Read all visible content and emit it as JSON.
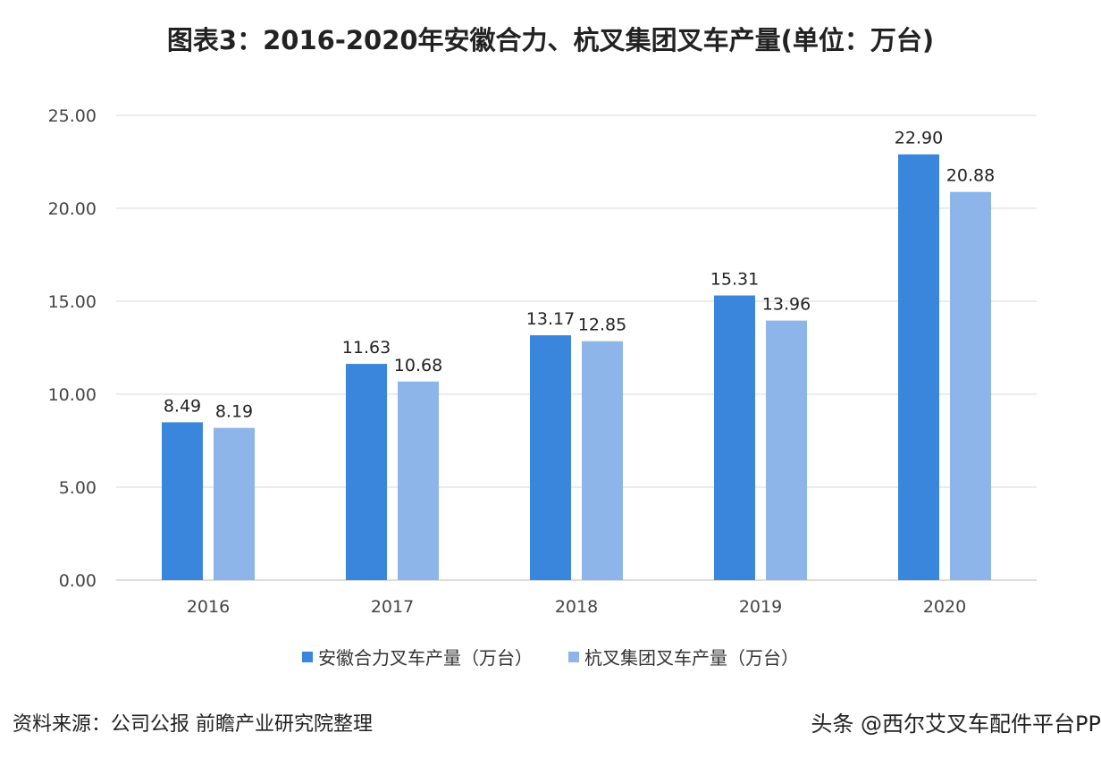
{
  "chart_data": {
    "type": "bar",
    "title": "图表3：2016-2020年安徽合力、杭叉集团叉车产量(单位：万台)",
    "categories": [
      "2016",
      "2017",
      "2018",
      "2019",
      "2020"
    ],
    "series": [
      {
        "name": "安徽合力叉车产量（万台）",
        "values": [
          8.49,
          11.63,
          13.17,
          15.31,
          22.9
        ],
        "color": "#3a86dc"
      },
      {
        "name": "杭叉集团叉车产量（万台）",
        "values": [
          8.19,
          10.68,
          12.85,
          13.96,
          20.88
        ],
        "color": "#8db5ea"
      }
    ],
    "yticks": [
      "0.00",
      "5.00",
      "10.00",
      "15.00",
      "20.00",
      "25.00"
    ],
    "ylim": [
      0,
      25
    ],
    "grid": true,
    "legend": "bottom"
  },
  "source": "资料来源：公司公报 前瞻产业研究院整理",
  "watermark": "头条 @西尔艾叉车配件平台PP"
}
